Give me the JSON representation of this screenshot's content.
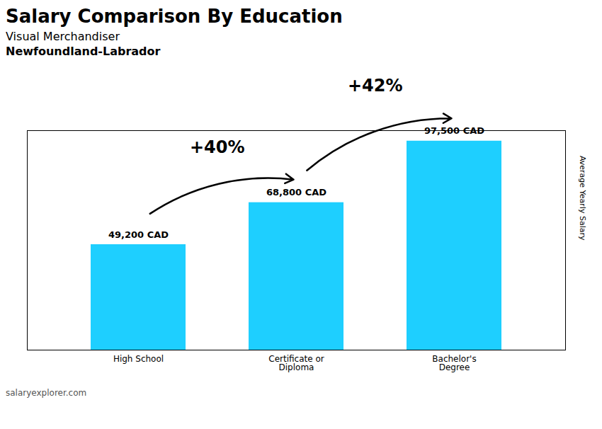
{
  "chart_data": {
    "type": "bar",
    "title": "Salary Comparison By Education",
    "subtitle": [
      "Visual Merchandiser",
      "Newfoundland-Labrador"
    ],
    "ylabel": "Average Yearly Salary",
    "categories": [
      "High School",
      "Certificate or\nDiploma",
      "Bachelor's\nDegree"
    ],
    "values": [
      49200,
      68800,
      97500
    ],
    "value_labels": [
      "49,200 CAD",
      "68,800 CAD",
      "97,500 CAD"
    ],
    "data_labels": true,
    "color": "#1ecfff",
    "ylim": [
      0,
      102375
    ],
    "yticks": [],
    "tick_labels": "x",
    "grid": false,
    "annotations": [
      "+40%",
      "+42%"
    ],
    "caption": "salaryexplorer.com"
  }
}
